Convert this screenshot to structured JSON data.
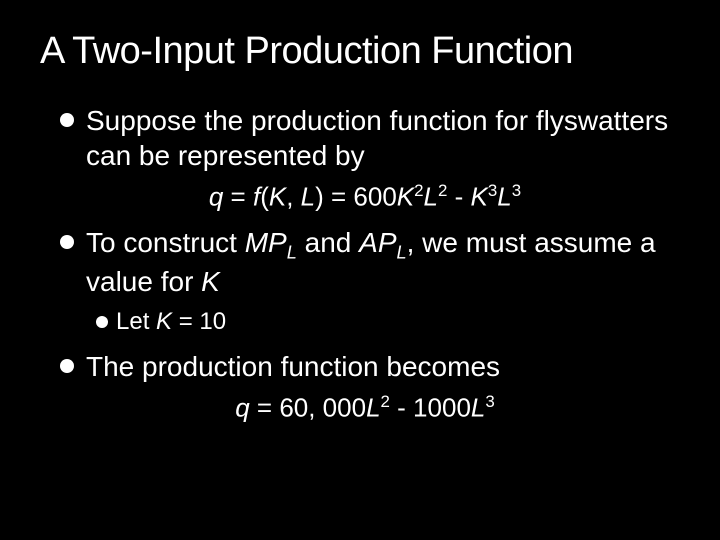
{
  "slide": {
    "background_color": "#000000",
    "text_color": "#ffffff",
    "title": "A Two-Input Production Function",
    "title_fontsize": 38,
    "bullets": [
      {
        "level": 1,
        "text": "Suppose the production function for flyswatters can be represented by",
        "fontsize": 28
      }
    ],
    "equation1": {
      "text": "q = f(K, L) = 600K²L² - K³L³",
      "q": "q",
      "eq": " = ",
      "f": "f",
      "open": "(",
      "K": "K",
      "comma": ", ",
      "L": "L",
      "close": ") = 600",
      "K2": "K",
      "sup2a": "2",
      "L2": "L",
      "sup2b": "2",
      "minus": " - ",
      "K3": "K",
      "sup3a": "3",
      "L3": "L",
      "sup3b": "3",
      "fontsize": 26
    },
    "bullet2": {
      "pre": "To construct ",
      "MP": "MP",
      "subL1": "L",
      "and": " and ",
      "AP": "AP",
      "subL2": "L",
      "post": ", we must assume a value for ",
      "K": "K",
      "fontsize": 28
    },
    "bullet3": {
      "pre": "Let ",
      "K": "K",
      "post": " = 10",
      "fontsize": 24
    },
    "bullet4": {
      "text": "The production function becomes",
      "fontsize": 28
    },
    "equation2": {
      "q": "q",
      "eq": " = 60, 000",
      "L2": "L",
      "sup2": "2",
      "minus": " - 1000",
      "L3": "L",
      "sup3": "3",
      "fontsize": 26
    }
  }
}
